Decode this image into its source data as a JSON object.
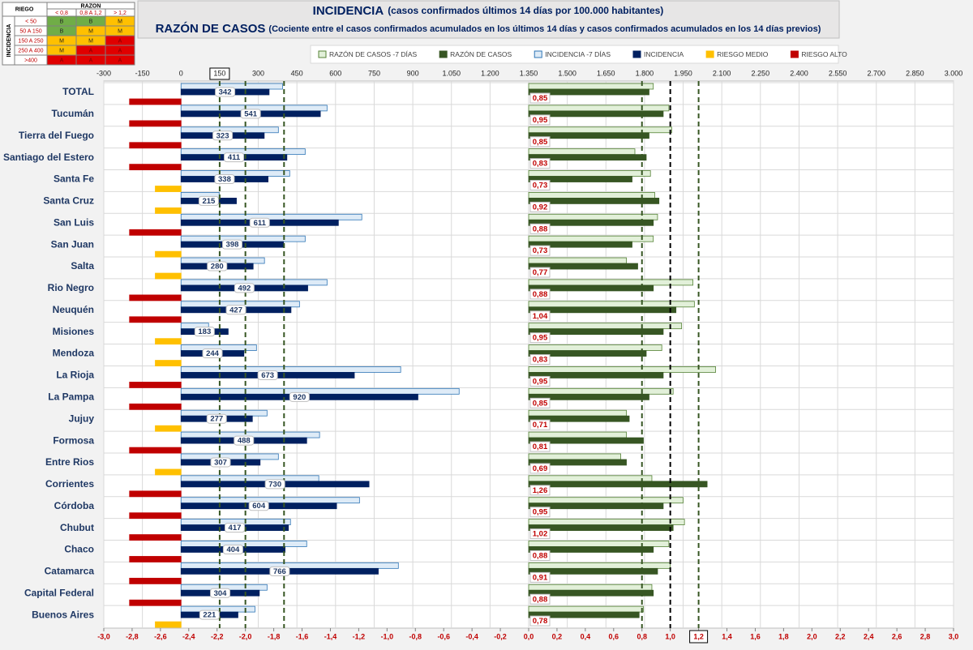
{
  "chart_data": {
    "type": "bar",
    "title": "INCIDENCIA",
    "title_note": "(casos confirmados últimos 14 días por 100.000 habitantes)",
    "subtitle": "RAZÓN DE CASOS",
    "subtitle_note": "(Cociente entre el casos confirmados acumulados en los últimos 14 días y casos confirmados acumulados en los 14 días previos)",
    "categories": [
      "TOTAL",
      "Tucumán",
      "Tierra del Fuego",
      "Santiago del Estero",
      "Santa Fe",
      "Santa Cruz",
      "San Luis",
      "San Juan",
      "Salta",
      "Rio Negro",
      "Neuquén",
      "Misiones",
      "Mendoza",
      "La Rioja",
      "La Pampa",
      "Jujuy",
      "Formosa",
      "Entre Rios",
      "Corrientes",
      "Córdoba",
      "Chubut",
      "Chaco",
      "Catamarca",
      "Capital Federal",
      "Buenos Aires"
    ],
    "series": [
      {
        "name": "RAZÓN DE CASOS -7 DÍAS",
        "color": "#e2f0d9",
        "stroke": "#548235",
        "axis": "x2",
        "slot": "top",
        "values": [
          0.88,
          0.99,
          1.01,
          0.75,
          0.86,
          0.89,
          0.91,
          0.88,
          0.69,
          1.16,
          1.17,
          1.08,
          0.94,
          1.32,
          1.02,
          0.69,
          0.69,
          0.65,
          0.87,
          1.09,
          1.1,
          0.99,
          1.0,
          0.87,
          0.81
        ]
      },
      {
        "name": "RAZÓN DE CASOS",
        "color": "#375623",
        "stroke": "#375623",
        "axis": "x2",
        "slot": "mid",
        "values": [
          0.85,
          0.95,
          0.85,
          0.83,
          0.73,
          0.92,
          0.88,
          0.73,
          0.77,
          0.88,
          1.04,
          0.95,
          0.83,
          0.95,
          0.85,
          0.71,
          0.81,
          0.69,
          1.26,
          0.95,
          1.02,
          0.88,
          0.91,
          0.88,
          0.78
        ],
        "value_labels": [
          "0,85",
          "0,95",
          "0,85",
          "0,83",
          "0,73",
          "0,92",
          "0,88",
          "0,73",
          "0,77",
          "0,88",
          "1,04",
          "0,95",
          "0,83",
          "0,95",
          "0,85",
          "0,71",
          "0,81",
          "0,69",
          "1,26",
          "0,95",
          "1,02",
          "0,88",
          "0,91",
          "0,88",
          "0,78"
        ]
      },
      {
        "name": "INCIDENCIA -7 DÍAS",
        "color": "#deebf7",
        "stroke": "#2e75b6",
        "axis": "x",
        "slot": "top",
        "values": [
          394,
          567,
          378,
          482,
          422,
          148,
          702,
          482,
          324,
          567,
          460,
          107,
          293,
          853,
          1080,
          334,
          538,
          378,
          535,
          693,
          425,
          488,
          844,
          334,
          287
        ]
      },
      {
        "name": "INCIDENCIA",
        "color": "#002060",
        "stroke": "#002060",
        "axis": "x",
        "slot": "mid",
        "labeled": true,
        "values": [
          342,
          541,
          323,
          411,
          338,
          215,
          611,
          398,
          280,
          492,
          427,
          183,
          244,
          673,
          920,
          277,
          488,
          307,
          730,
          604,
          417,
          404,
          766,
          304,
          221
        ]
      },
      {
        "name": "RIESGO MEDIO",
        "color": "#ffc000",
        "stroke": "#ffc000",
        "axis": "x",
        "slot": "low",
        "values": [
          null,
          null,
          null,
          null,
          -100,
          -100,
          null,
          -100,
          -100,
          null,
          null,
          -100,
          -100,
          null,
          null,
          -100,
          null,
          -100,
          null,
          null,
          null,
          null,
          null,
          null,
          -100
        ]
      },
      {
        "name": "RIESGO ALTO",
        "color": "#c00000",
        "stroke": "#c00000",
        "axis": "x",
        "slot": "low",
        "values": [
          -200,
          -200,
          -200,
          -200,
          null,
          null,
          -200,
          null,
          null,
          -200,
          -200,
          null,
          null,
          -200,
          -200,
          null,
          -200,
          null,
          -200,
          -200,
          -200,
          -200,
          -200,
          -200,
          null
        ]
      }
    ],
    "xlim": [
      -300,
      3000
    ],
    "xticks": [
      -300,
      -150,
      0,
      150,
      300,
      450,
      600,
      750,
      900,
      {
        "value": 1050,
        "label": "1.050"
      },
      {
        "value": 1200,
        "label": "1.200"
      },
      {
        "value": 1350,
        "label": "1.350"
      },
      {
        "value": 1500,
        "label": "1.500"
      },
      {
        "value": 1650,
        "label": "1.650"
      },
      {
        "value": 1800,
        "label": "1.800"
      },
      {
        "value": 1950,
        "label": "1.950"
      },
      {
        "value": 2100,
        "label": "2.100"
      },
      {
        "value": 2250,
        "label": "2.250"
      },
      {
        "value": 2400,
        "label": "2.400"
      },
      {
        "value": 2550,
        "label": "2.550"
      },
      {
        "value": 2700,
        "label": "2.700"
      },
      {
        "value": 2850,
        "label": "2.850"
      },
      {
        "value": 3000,
        "label": "3.000"
      }
    ],
    "x2lim": [
      -3,
      3
    ],
    "x2ticks": [
      {
        "value": -3,
        "label": "-3,0"
      },
      {
        "value": -2.8,
        "label": "-2,8"
      },
      {
        "value": -2.6,
        "label": "-2,6"
      },
      {
        "value": -2.4,
        "label": "-2,4"
      },
      {
        "value": -2.2,
        "label": "-2,2"
      },
      {
        "value": -2,
        "label": "-2,0"
      },
      {
        "value": -1.8,
        "label": "-1,8"
      },
      {
        "value": -1.6,
        "label": "-1,6"
      },
      {
        "value": -1.4,
        "label": "-1,4"
      },
      {
        "value": -1.2,
        "label": "-1,2"
      },
      {
        "value": -1,
        "label": "-1,0"
      },
      {
        "value": -0.8,
        "label": "-0,8"
      },
      {
        "value": -0.6,
        "label": "-0,6"
      },
      {
        "value": -0.4,
        "label": "-0,4"
      },
      {
        "value": -0.2,
        "label": "-0,2"
      },
      {
        "value": 0,
        "label": "0,0"
      },
      {
        "value": 0.2,
        "label": "0,2"
      },
      {
        "value": 0.4,
        "label": "0,4"
      },
      {
        "value": 0.6,
        "label": "0,6"
      },
      {
        "value": 0.8,
        "label": "0,8"
      },
      {
        "value": 1,
        "label": "1,0"
      },
      {
        "value": 1.2,
        "label": "1,2"
      },
      {
        "value": 1.4,
        "label": "1,4"
      },
      {
        "value": 1.6,
        "label": "1,6"
      },
      {
        "value": 1.8,
        "label": "1,8"
      },
      {
        "value": 2,
        "label": "2,0"
      },
      {
        "value": 2.2,
        "label": "2,2"
      },
      {
        "value": 2.4,
        "label": "2,4"
      },
      {
        "value": 2.6,
        "label": "2,6"
      },
      {
        "value": 2.8,
        "label": "2,8"
      },
      {
        "value": 3,
        "label": "3,0"
      }
    ],
    "boxed_xticks": [
      150
    ],
    "boxed_x2ticks": [
      1.2
    ],
    "grid": true,
    "reference_lines": [
      {
        "axis": "x",
        "value": 150,
        "color": "#375623"
      },
      {
        "axis": "x",
        "value": 250,
        "color": "#375623"
      },
      {
        "axis": "x",
        "value": 400,
        "color": "#375623"
      },
      {
        "axis": "x2",
        "value": 0.8,
        "color": "#375623"
      },
      {
        "axis": "x2",
        "value": 1,
        "color": "#000000"
      },
      {
        "axis": "x2",
        "value": 1.2,
        "color": "#375623"
      }
    ],
    "legend": "top",
    "risk_table": {
      "corner": "RIEGO",
      "column_title": "RAZON",
      "row_title": "INCIDENCIA",
      "columns": [
        "< 0,8",
        "0,8 A 1,2",
        "> 1,2"
      ],
      "rows": [
        "< 50",
        "50 A 150",
        "150 A 250",
        "250 A 400",
        ">400"
      ],
      "cells": [
        [
          "B",
          "B",
          "M"
        ],
        [
          "B",
          "M",
          "M"
        ],
        [
          "M",
          "M",
          "A"
        ],
        [
          "M",
          "A",
          "A"
        ],
        [
          "A",
          "A",
          "A"
        ]
      ],
      "colors": {
        "B": "#70ad47",
        "M": "#ffc000",
        "A": "#e00000"
      }
    }
  }
}
